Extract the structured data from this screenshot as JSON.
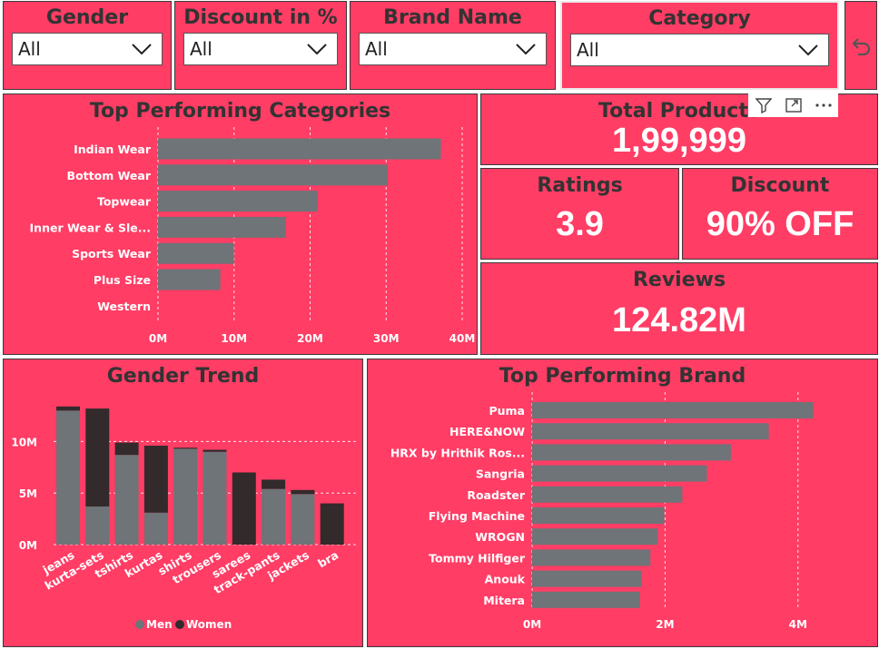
{
  "slicers": [
    {
      "title": "Gender",
      "value": "All"
    },
    {
      "title": "Discount in %",
      "value": "All"
    },
    {
      "title": "Brand Name",
      "value": "All"
    },
    {
      "title": "Category",
      "value": "All"
    }
  ],
  "cards": {
    "total_products": {
      "title": "Total Products",
      "value": "1,99,999"
    },
    "ratings": {
      "title": "Ratings",
      "value": "3.9"
    },
    "discount": {
      "title": "Discount",
      "value": "90% OFF"
    },
    "reviews": {
      "title": "Reviews",
      "value": "124.82M"
    }
  },
  "colors": {
    "panel": "#ff3d65",
    "bar": "#6e7478",
    "men": "#6e7478",
    "women": "#332a2c",
    "title_text": "#333333"
  },
  "icons": {
    "reset": "undo-arrow-icon",
    "filter": "filter-icon",
    "focus": "focus-mode-icon",
    "more": "more-options-icon"
  },
  "chart_data": [
    {
      "id": "top_categories",
      "type": "bar",
      "orientation": "horizontal",
      "title": "Top Performing Categories",
      "categories": [
        "Indian Wear",
        "Bottom Wear",
        "Topwear",
        "Inner Wear & Sle...",
        "Sports Wear",
        "Plus Size",
        "Western"
      ],
      "values": [
        37.2,
        30.2,
        21.0,
        16.8,
        10.0,
        8.2,
        0
      ],
      "xlim": [
        0,
        40
      ],
      "xticks": [
        0,
        10,
        20,
        30,
        40
      ],
      "xtick_labels": [
        "0M",
        "10M",
        "20M",
        "30M",
        "40M"
      ],
      "grid": true
    },
    {
      "id": "gender_trend",
      "type": "bar",
      "stacked": true,
      "title": "Gender Trend",
      "categories": [
        "jeans",
        "kurta-sets",
        "tshirts",
        "kurtas",
        "shirts",
        "trousers",
        "sarees",
        "track-pants",
        "jackets",
        "bra"
      ],
      "series": [
        {
          "name": "Men",
          "values": [
            13.0,
            3.7,
            8.7,
            3.1,
            9.3,
            9.0,
            0,
            5.4,
            4.9,
            0
          ]
        },
        {
          "name": "Women",
          "values": [
            0.4,
            9.5,
            1.2,
            6.5,
            0.1,
            0.2,
            7.0,
            0.9,
            0.4,
            4.0
          ]
        }
      ],
      "ylim": [
        0,
        14
      ],
      "yticks": [
        0,
        5,
        10
      ],
      "ytick_labels": [
        "0M",
        "5M",
        "10M"
      ],
      "legend": "bottom",
      "grid": true
    },
    {
      "id": "top_brands",
      "type": "bar",
      "orientation": "horizontal",
      "title": "Top Performing Brand",
      "categories": [
        "Puma",
        "HERE&NOW",
        "HRX by Hrithik Ros...",
        "Sangria",
        "Roadster",
        "Flying Machine",
        "WROGN",
        "Tommy Hilfiger",
        "Anouk",
        "Mitera"
      ],
      "values": [
        4.23,
        3.56,
        2.99,
        2.63,
        2.26,
        1.99,
        1.89,
        1.78,
        1.65,
        1.62
      ],
      "xlim": [
        0,
        5
      ],
      "xticks": [
        0,
        2,
        4
      ],
      "xtick_labels": [
        "0M",
        "2M",
        "4M"
      ],
      "grid": true
    }
  ]
}
